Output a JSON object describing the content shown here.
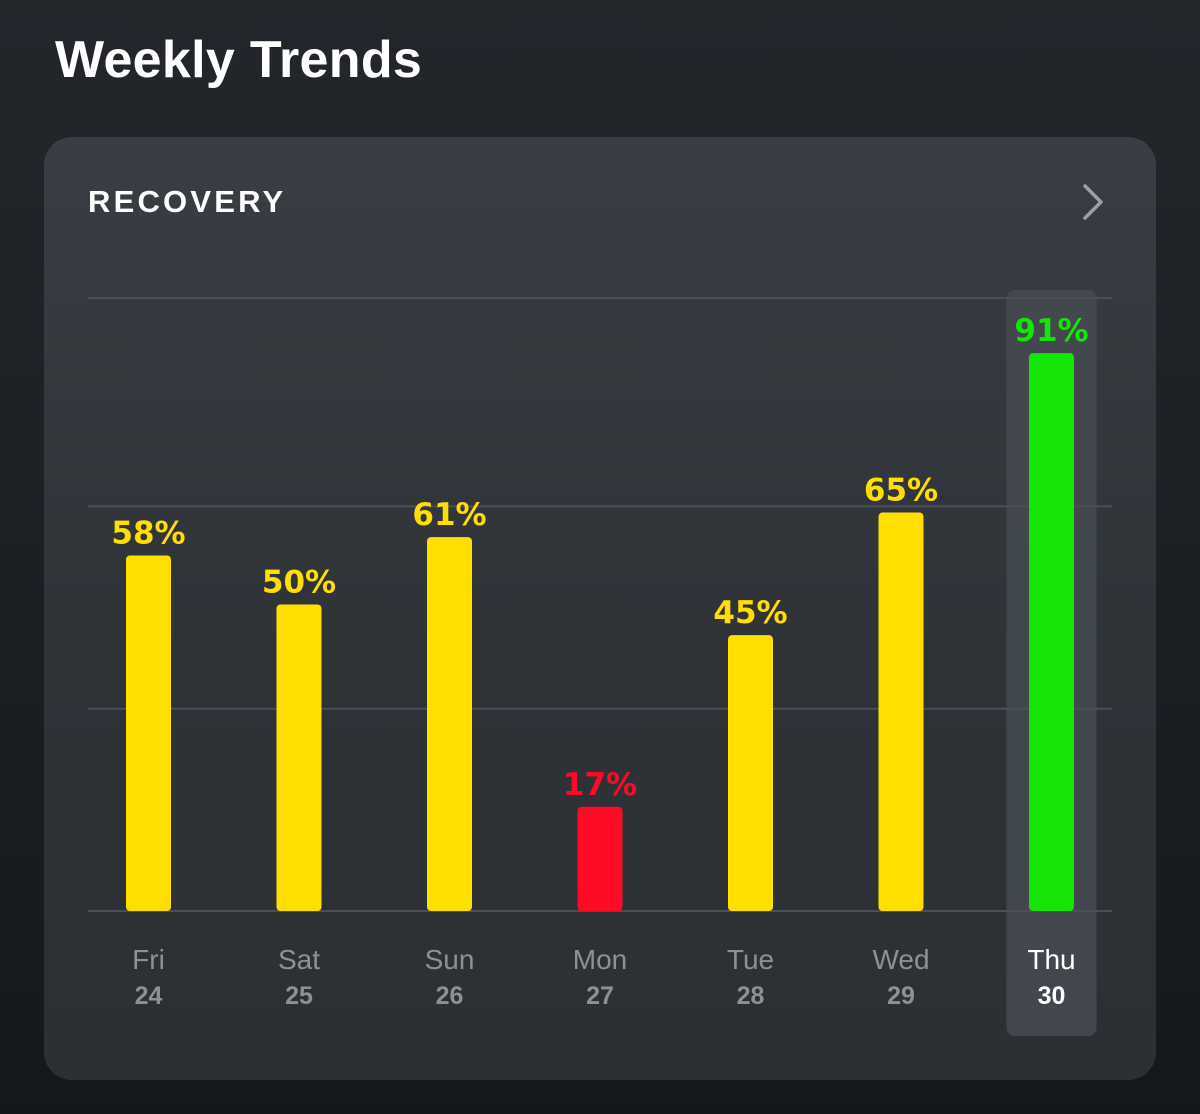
{
  "header": {
    "title": "Weekly Trends"
  },
  "card": {
    "title": "RECOVERY",
    "chevron_icon": "chevron-right-icon"
  },
  "colors": {
    "yellow": "#ffde00",
    "red": "#ff0a26",
    "green": "#16e607",
    "tick_text": "#8c9196",
    "tick_text_selected": "#ffffff",
    "gridline": "#4b5056",
    "highlight": "#444a50"
  },
  "chart_data": {
    "type": "bar",
    "title": "RECOVERY",
    "xlabel": "",
    "ylabel": "",
    "ylim": [
      0,
      100
    ],
    "grid": true,
    "gridlines": [
      0,
      33,
      66,
      100
    ],
    "unit": "%",
    "selected_index": 6,
    "categories": [
      {
        "day": "Fri",
        "date": "24"
      },
      {
        "day": "Sat",
        "date": "25"
      },
      {
        "day": "Sun",
        "date": "26"
      },
      {
        "day": "Mon",
        "date": "27"
      },
      {
        "day": "Tue",
        "date": "28"
      },
      {
        "day": "Wed",
        "date": "29"
      },
      {
        "day": "Thu",
        "date": "30"
      }
    ],
    "values": [
      58,
      50,
      61,
      17,
      45,
      65,
      91
    ],
    "labels": [
      "58%",
      "50%",
      "61%",
      "17%",
      "45%",
      "65%",
      "91%"
    ],
    "bar_colors": [
      "yellow",
      "yellow",
      "yellow",
      "red",
      "yellow",
      "yellow",
      "green"
    ]
  }
}
